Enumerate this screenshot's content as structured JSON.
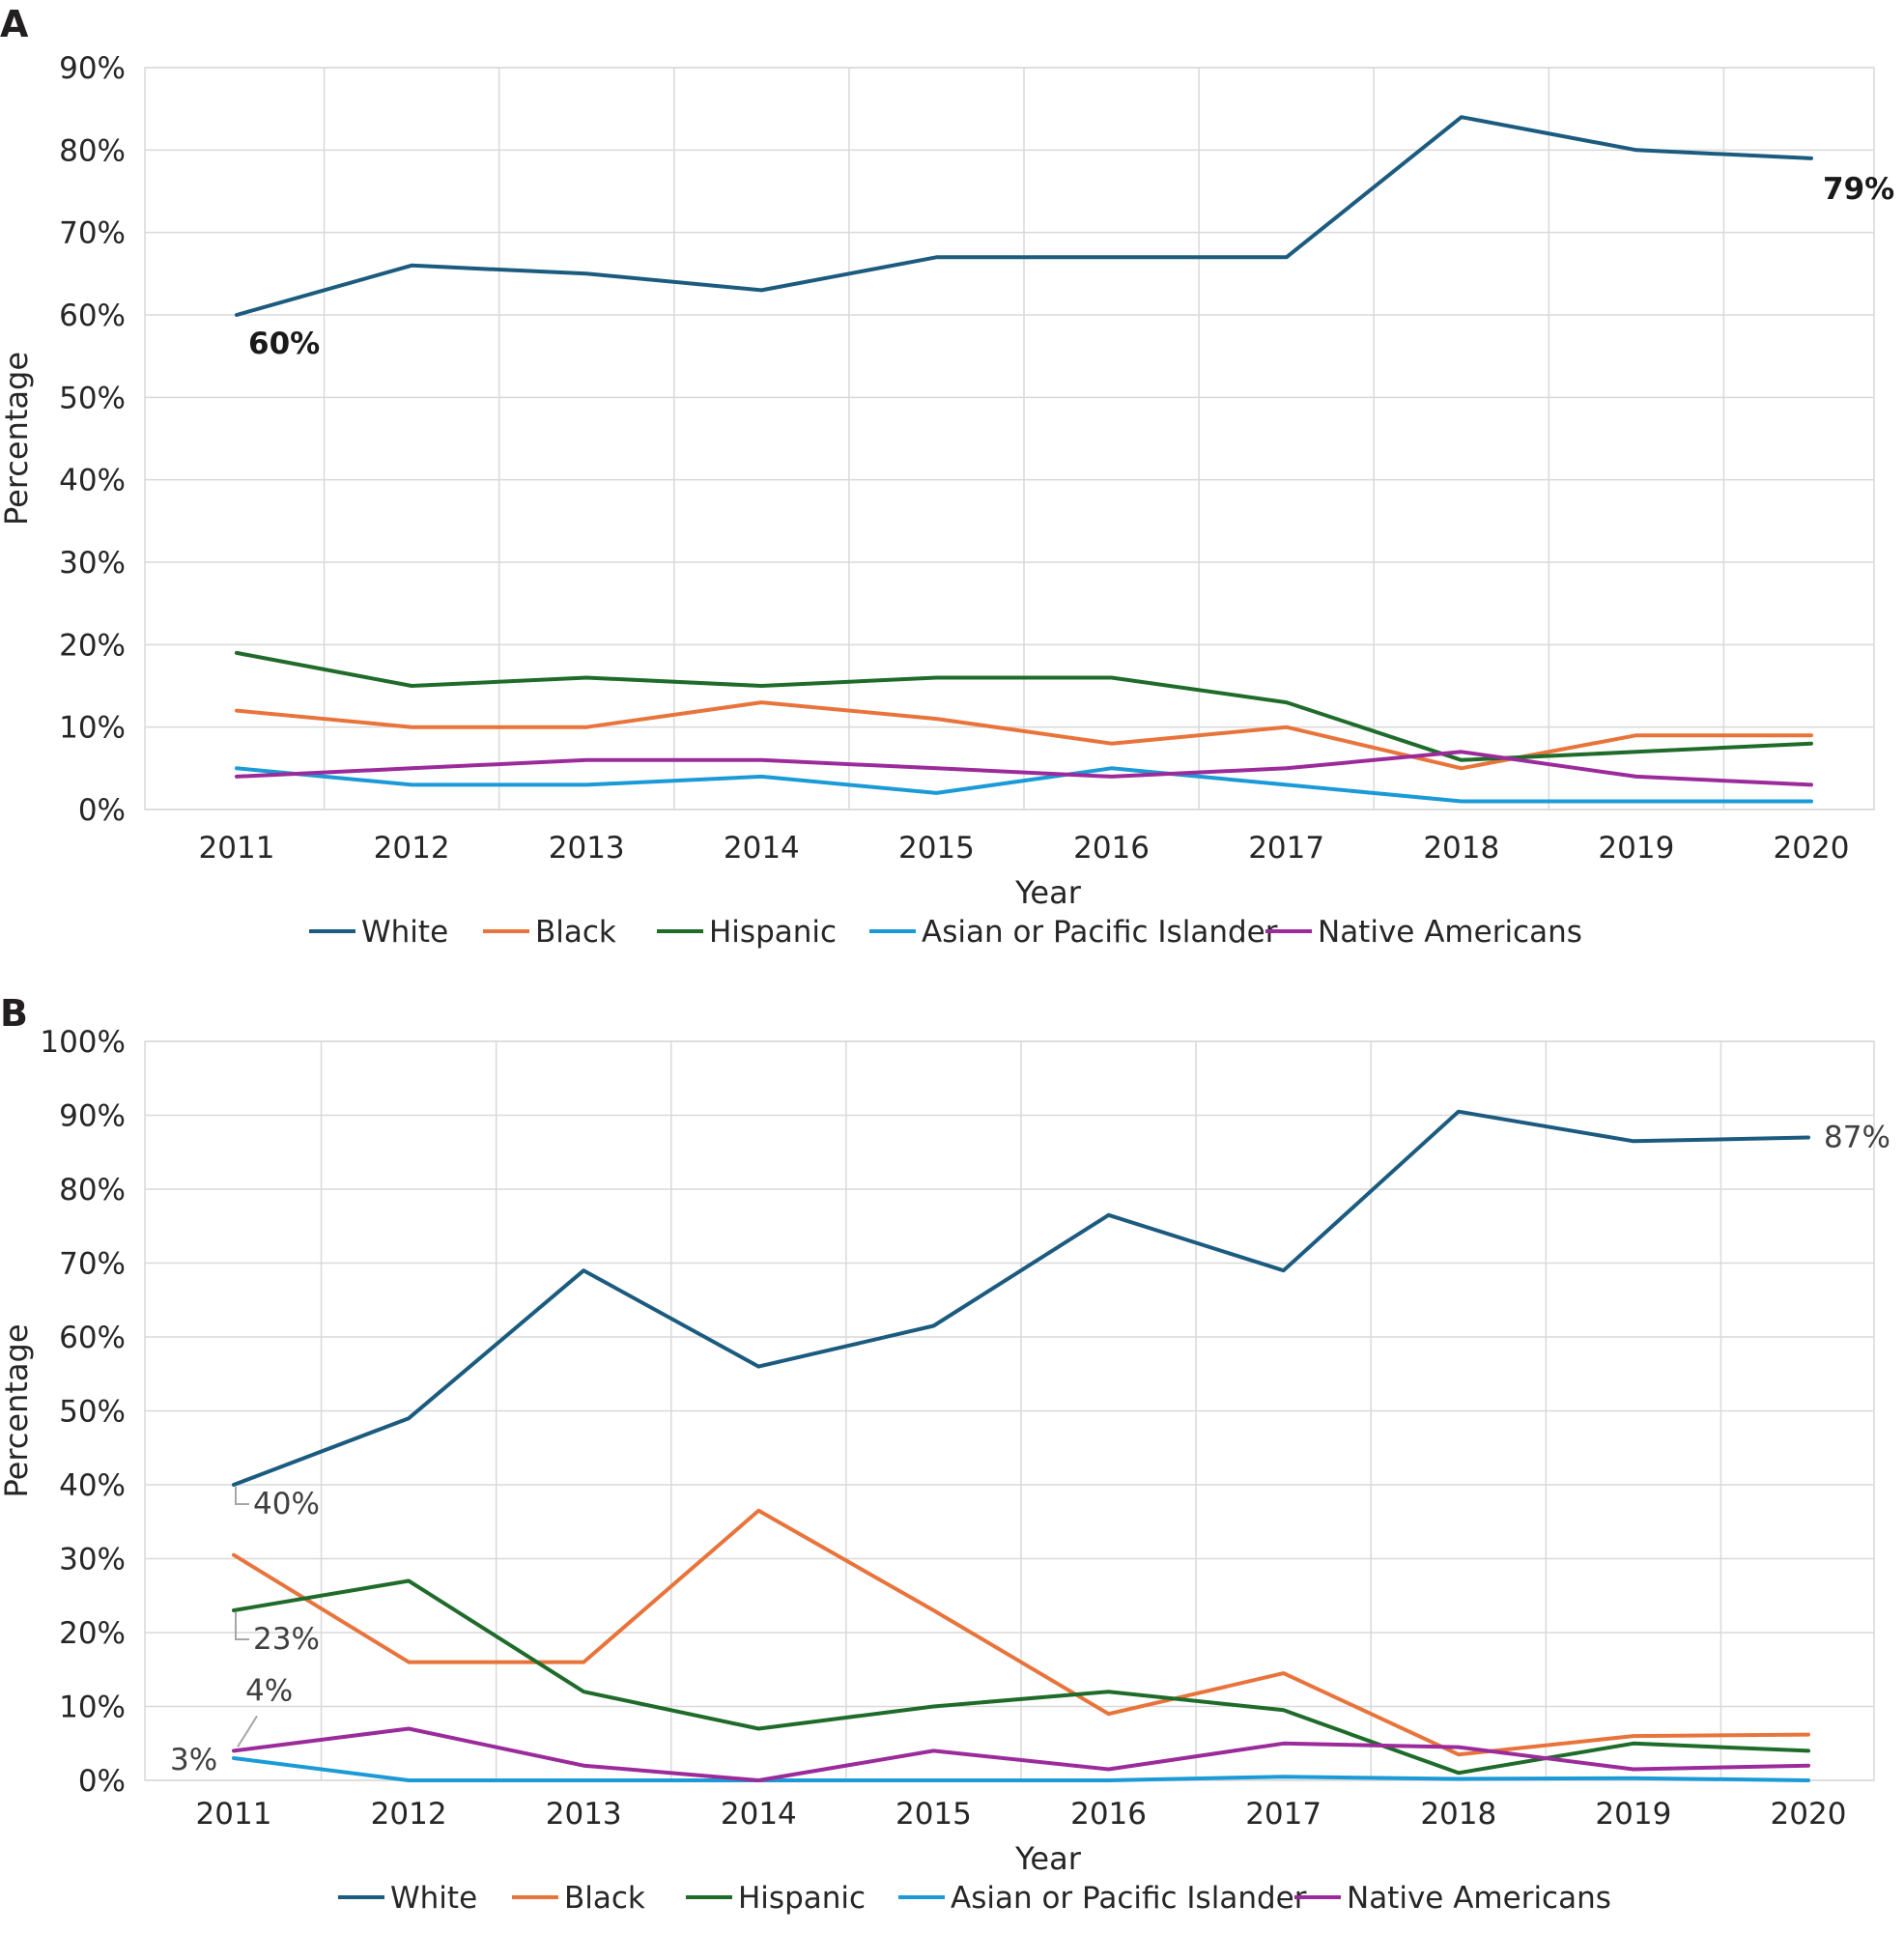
{
  "chart_data": [
    {
      "type": "line",
      "panel_label": "A",
      "title": "",
      "xlabel": "Year",
      "ylabel": "Percentage",
      "ylim": [
        0,
        90
      ],
      "yticks": [
        0,
        10,
        20,
        30,
        40,
        50,
        60,
        70,
        80,
        90
      ],
      "ytick_labels": [
        "0%",
        "10%",
        "20%",
        "30%",
        "40%",
        "50%",
        "60%",
        "70%",
        "80%",
        "90%"
      ],
      "grid": true,
      "legend_position": "bottom",
      "x": [
        "2011",
        "2012",
        "2013",
        "2014",
        "2015",
        "2016",
        "2017",
        "2018",
        "2019",
        "2020"
      ],
      "series": [
        {
          "name": "White",
          "color": "#1b5b7f",
          "values": [
            60,
            66,
            65,
            63,
            67,
            67,
            67,
            84,
            80,
            79
          ]
        },
        {
          "name": "Black",
          "color": "#e8743b",
          "values": [
            12,
            10,
            10,
            13,
            11,
            8,
            10,
            5,
            9,
            9
          ]
        },
        {
          "name": "Hispanic",
          "color": "#1e6b2a",
          "values": [
            19,
            15,
            16,
            15,
            16,
            16,
            13,
            6,
            7,
            8
          ]
        },
        {
          "name": "Asian or Pacific Islander",
          "color": "#1a9ad6",
          "values": [
            5,
            3,
            3,
            4,
            2,
            5,
            3,
            1,
            1,
            1
          ]
        },
        {
          "name": "Native Americans",
          "color": "#9b2b9b",
          "values": [
            4,
            5,
            6,
            6,
            5,
            4,
            5,
            7,
            4,
            3
          ]
        }
      ],
      "annotations": [
        {
          "text": "60%",
          "series": "White",
          "x": "2011",
          "y": 60,
          "bold": true
        },
        {
          "text": "79%",
          "series": "White",
          "x": "2020",
          "y": 79,
          "bold": true
        }
      ]
    },
    {
      "type": "line",
      "panel_label": "B",
      "title": "",
      "xlabel": "Year",
      "ylabel": "Percentage",
      "ylim": [
        0,
        100
      ],
      "yticks": [
        0,
        10,
        20,
        30,
        40,
        50,
        60,
        70,
        80,
        90,
        100
      ],
      "ytick_labels": [
        "0%",
        "10%",
        "20%",
        "30%",
        "40%",
        "50%",
        "60%",
        "70%",
        "80%",
        "90%",
        "100%"
      ],
      "grid": true,
      "legend_position": "bottom",
      "x": [
        "2011",
        "2012",
        "2013",
        "2014",
        "2015",
        "2016",
        "2017",
        "2018",
        "2019",
        "2020"
      ],
      "series": [
        {
          "name": "White",
          "color": "#1b5b7f",
          "values": [
            40,
            49,
            69,
            56,
            61.5,
            76.5,
            69,
            90.5,
            86.5,
            87
          ]
        },
        {
          "name": "Black",
          "color": "#e8743b",
          "values": [
            30.5,
            16,
            16,
            36.5,
            23,
            9,
            14.5,
            3.5,
            6,
            6.2
          ]
        },
        {
          "name": "Hispanic",
          "color": "#1e6b2a",
          "values": [
            23,
            27,
            12,
            7,
            10,
            12,
            9.5,
            1,
            5,
            4
          ]
        },
        {
          "name": "Asian or Pacific Islander",
          "color": "#1a9ad6",
          "values": [
            3,
            0,
            0,
            0,
            0,
            0,
            0.5,
            0.2,
            0.3,
            0
          ]
        },
        {
          "name": "Native Americans",
          "color": "#9b2b9b",
          "values": [
            4,
            7,
            2,
            0,
            4,
            1.5,
            5,
            4.5,
            1.5,
            2
          ]
        }
      ],
      "annotations": [
        {
          "text": "40%",
          "series": "White",
          "x": "2011",
          "y": 40
        },
        {
          "text": "87%",
          "series": "White",
          "x": "2020",
          "y": 87
        },
        {
          "text": "23%",
          "series": "Hispanic",
          "x": "2011",
          "y": 23
        },
        {
          "text": "4%",
          "series": "Native Americans",
          "x": "2011",
          "y": 4
        },
        {
          "text": "3%",
          "series": "Asian or Pacific Islander",
          "x": "2011",
          "y": 3
        }
      ]
    }
  ]
}
